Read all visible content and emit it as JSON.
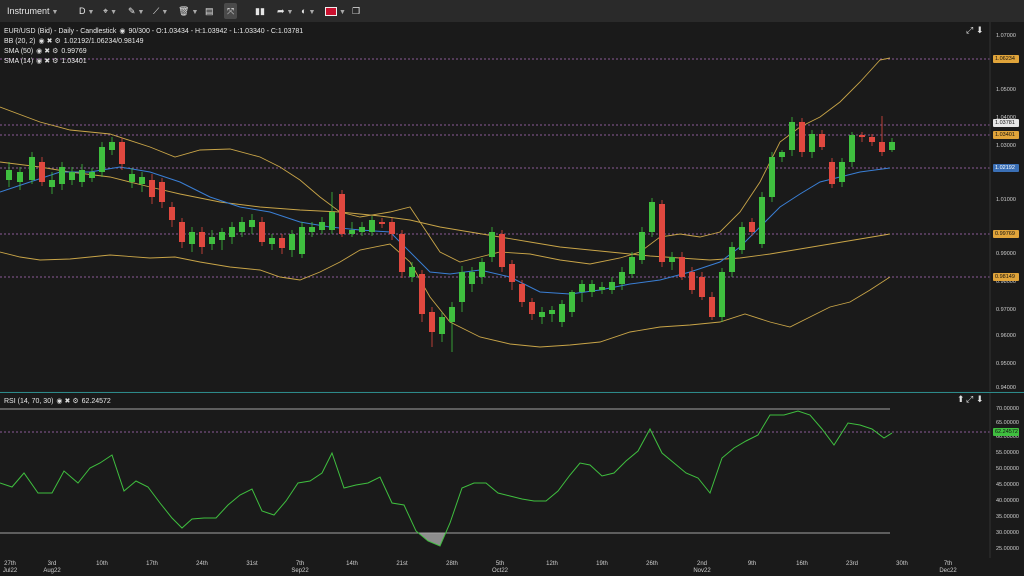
{
  "toolbar": {
    "instrument_label": "Instrument",
    "timeframe": "D",
    "icons": [
      "crosshair-icon",
      "pen-icon",
      "trendline-icon",
      "delete-icon",
      "layout-icon",
      "fullscreen-icon",
      "chart-type-icon",
      "share-icon",
      "theme-icon",
      "flag-uk-icon",
      "snapshot-icon"
    ]
  },
  "main_chart": {
    "title_line": "EUR/USD (Bid) - Daily - Candlestick",
    "ohlc": "90/300 - O:1.03434 - H:1.03942 - L:1.03340 - C:1.03781",
    "indicators": [
      {
        "label": "BB (20, 2)",
        "value": "1.02192/1.06234/0.98149"
      },
      {
        "label": "SMA (50)",
        "value": "0.99769"
      },
      {
        "label": "SMA (14)",
        "value": "1.03401"
      }
    ],
    "y_ticks": [
      "1.07000",
      "1.05000",
      "1.04000",
      "1.03000",
      "1.01000",
      "0.99000",
      "0.98000",
      "0.97000",
      "0.96000",
      "0.95000",
      "0.94000"
    ],
    "y_badges": [
      {
        "text": "1.06234",
        "color": "#e0a43a"
      },
      {
        "text": "1.03781",
        "color": "#e6e6e6"
      },
      {
        "text": "1.03401",
        "color": "#e0a43a"
      },
      {
        "text": "1.02192",
        "color": "#3a6fb5"
      },
      {
        "text": "0.99769",
        "color": "#e0a43a"
      },
      {
        "text": "0.98149",
        "color": "#e0a43a"
      }
    ]
  },
  "rsi": {
    "label": "RSI (14, 70, 30)",
    "value": "62.24572",
    "badge_color": "#3fbf3f",
    "y_ticks": [
      "70.00000",
      "65.00000",
      "60.00000",
      "55.00000",
      "50.00000",
      "45.00000",
      "40.00000",
      "35.00000",
      "30.00000",
      "25.00000"
    ]
  },
  "x_axis": [
    {
      "top": "27th",
      "bottom": "Jul22"
    },
    {
      "top": "3rd",
      "bottom": "Aug22"
    },
    {
      "top": "10th",
      "bottom": ""
    },
    {
      "top": "17th",
      "bottom": ""
    },
    {
      "top": "24th",
      "bottom": ""
    },
    {
      "top": "31st",
      "bottom": ""
    },
    {
      "top": "7th",
      "bottom": "Sep22"
    },
    {
      "top": "14th",
      "bottom": ""
    },
    {
      "top": "21st",
      "bottom": ""
    },
    {
      "top": "28th",
      "bottom": ""
    },
    {
      "top": "5th",
      "bottom": "Oct22"
    },
    {
      "top": "12th",
      "bottom": ""
    },
    {
      "top": "19th",
      "bottom": ""
    },
    {
      "top": "26th",
      "bottom": ""
    },
    {
      "top": "2nd",
      "bottom": "Nov22"
    },
    {
      "top": "9th",
      "bottom": ""
    },
    {
      "top": "16th",
      "bottom": ""
    },
    {
      "top": "23rd",
      "bottom": ""
    },
    {
      "top": "30th",
      "bottom": ""
    },
    {
      "top": "7th",
      "bottom": "Dec22"
    }
  ],
  "colors": {
    "up": "#3fbf3f",
    "down": "#e0483f",
    "bb": "#c9a548",
    "sma50": "#c9a548",
    "sma14": "#3a7fd5",
    "rsi": "#3fbf3f"
  }
}
